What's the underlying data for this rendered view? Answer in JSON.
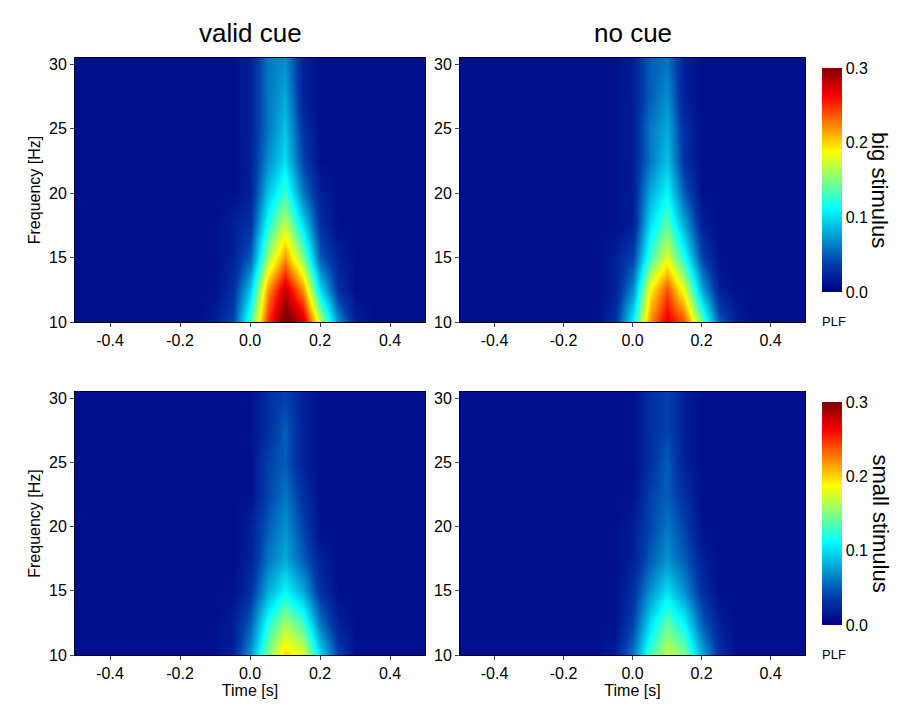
{
  "chart_data": [
    {
      "type": "heatmap",
      "column_title": "valid cue",
      "ylabel": "Frequency [Hz]",
      "x": [
        -0.5,
        -0.45,
        -0.4,
        -0.35,
        -0.3,
        -0.25,
        -0.2,
        -0.15,
        -0.1,
        -0.05,
        0,
        0.05,
        0.1,
        0.15,
        0.2,
        0.25,
        0.3,
        0.35,
        0.4,
        0.45,
        0.5
      ],
      "y": [
        10,
        12.5,
        15,
        17.5,
        20,
        22.5,
        25,
        27.5,
        30
      ],
      "xlim": [
        -0.5,
        0.5
      ],
      "ylim": [
        10,
        30.5
      ],
      "xticks": [
        -0.4,
        -0.2,
        {
          "value": 0,
          "label": "0.0"
        },
        0.2,
        0.4
      ],
      "yticks": [
        10,
        15,
        20,
        25,
        30
      ],
      "z": [
        [
          0.01,
          0.01,
          0.01,
          0.01,
          0.01,
          0.01,
          0.01,
          0.01,
          0.02,
          0.04,
          0.13,
          0.25,
          0.31,
          0.28,
          0.17,
          0.07,
          0.02,
          0.01,
          0.01,
          0.01,
          0.01
        ],
        [
          0.01,
          0.01,
          0.01,
          0.01,
          0.01,
          0.01,
          0.01,
          0.01,
          0.01,
          0.03,
          0.09,
          0.22,
          0.28,
          0.22,
          0.1,
          0.03,
          0.01,
          0.01,
          0.01,
          0.01,
          0.01
        ],
        [
          0.01,
          0.01,
          0.01,
          0.01,
          0.01,
          0.01,
          0.01,
          0.01,
          0.01,
          0.02,
          0.05,
          0.16,
          0.22,
          0.15,
          0.05,
          0.02,
          0.01,
          0.01,
          0.01,
          0.01,
          0.01
        ],
        [
          0.01,
          0.01,
          0.01,
          0.01,
          0.01,
          0.01,
          0.01,
          0.01,
          0.01,
          0.02,
          0.03,
          0.12,
          0.17,
          0.1,
          0.03,
          0.01,
          0.01,
          0.01,
          0.01,
          0.01,
          0.01
        ],
        [
          0.01,
          0.01,
          0.01,
          0.01,
          0.01,
          0.01,
          0.01,
          0.01,
          0.01,
          0.01,
          0.02,
          0.09,
          0.13,
          0.06,
          0.02,
          0.01,
          0.01,
          0.01,
          0.01,
          0.01,
          0.01
        ],
        [
          0.01,
          0.01,
          0.01,
          0.01,
          0.01,
          0.01,
          0.01,
          0.01,
          0.01,
          0.01,
          0.02,
          0.07,
          0.1,
          0.04,
          0.01,
          0.01,
          0.01,
          0.01,
          0.01,
          0.01,
          0.01
        ],
        [
          0.01,
          0.01,
          0.01,
          0.01,
          0.01,
          0.01,
          0.01,
          0.01,
          0.01,
          0.01,
          0.02,
          0.06,
          0.09,
          0.03,
          0.01,
          0.01,
          0.01,
          0.01,
          0.01,
          0.01,
          0.01
        ],
        [
          0.01,
          0.01,
          0.01,
          0.01,
          0.01,
          0.01,
          0.01,
          0.01,
          0.01,
          0.01,
          0.02,
          0.06,
          0.08,
          0.02,
          0.01,
          0.01,
          0.01,
          0.01,
          0.01,
          0.01,
          0.01
        ],
        [
          0.01,
          0.01,
          0.01,
          0.01,
          0.01,
          0.01,
          0.01,
          0.01,
          0.01,
          0.01,
          0.02,
          0.06,
          0.07,
          0.02,
          0.01,
          0.01,
          0.01,
          0.01,
          0.01,
          0.01,
          0.01
        ]
      ]
    },
    {
      "type": "heatmap",
      "column_title": "no cue",
      "row_label": "big stimulus",
      "x": [
        -0.5,
        -0.45,
        -0.4,
        -0.35,
        -0.3,
        -0.25,
        -0.2,
        -0.15,
        -0.1,
        -0.05,
        0,
        0.05,
        0.1,
        0.15,
        0.2,
        0.25,
        0.3,
        0.35,
        0.4,
        0.45,
        0.5
      ],
      "y": [
        10,
        12.5,
        15,
        17.5,
        20,
        22.5,
        25,
        27.5,
        30
      ],
      "xlim": [
        -0.5,
        0.5
      ],
      "ylim": [
        10,
        30.5
      ],
      "xticks": [
        -0.4,
        -0.2,
        {
          "value": 0,
          "label": "0.0"
        },
        0.2,
        0.4
      ],
      "yticks": [
        10,
        15,
        20,
        25,
        30
      ],
      "colorbar": {
        "range": [
          0,
          0.3
        ],
        "ticks": [
          {
            "value": 0,
            "label": "0.0"
          },
          0.1,
          0.2,
          0.3
        ],
        "title": "PLF"
      },
      "z": [
        [
          0.01,
          0.01,
          0.01,
          0.01,
          0.01,
          0.01,
          0.01,
          0.01,
          0.01,
          0.03,
          0.11,
          0.22,
          0.27,
          0.24,
          0.14,
          0.05,
          0.02,
          0.01,
          0.01,
          0.01,
          0.01
        ],
        [
          0.01,
          0.01,
          0.01,
          0.01,
          0.01,
          0.01,
          0.01,
          0.01,
          0.01,
          0.02,
          0.07,
          0.19,
          0.24,
          0.18,
          0.08,
          0.02,
          0.01,
          0.01,
          0.01,
          0.01,
          0.01
        ],
        [
          0.01,
          0.01,
          0.01,
          0.01,
          0.01,
          0.01,
          0.01,
          0.01,
          0.01,
          0.02,
          0.04,
          0.13,
          0.18,
          0.12,
          0.04,
          0.01,
          0.01,
          0.01,
          0.01,
          0.01,
          0.01
        ],
        [
          0.01,
          0.01,
          0.01,
          0.01,
          0.01,
          0.01,
          0.01,
          0.01,
          0.01,
          0.01,
          0.02,
          0.1,
          0.14,
          0.08,
          0.02,
          0.01,
          0.01,
          0.01,
          0.01,
          0.01,
          0.01
        ],
        [
          0.01,
          0.01,
          0.01,
          0.01,
          0.01,
          0.01,
          0.01,
          0.01,
          0.01,
          0.01,
          0.02,
          0.08,
          0.11,
          0.05,
          0.01,
          0.01,
          0.01,
          0.01,
          0.01,
          0.01,
          0.01
        ],
        [
          0.01,
          0.01,
          0.01,
          0.01,
          0.01,
          0.01,
          0.01,
          0.01,
          0.01,
          0.01,
          0.02,
          0.06,
          0.09,
          0.03,
          0.01,
          0.01,
          0.01,
          0.01,
          0.01,
          0.01,
          0.01
        ],
        [
          0.01,
          0.01,
          0.01,
          0.01,
          0.01,
          0.01,
          0.01,
          0.01,
          0.01,
          0.01,
          0.02,
          0.06,
          0.08,
          0.03,
          0.01,
          0.01,
          0.01,
          0.01,
          0.01,
          0.01,
          0.01
        ],
        [
          0.01,
          0.01,
          0.01,
          0.01,
          0.01,
          0.01,
          0.01,
          0.01,
          0.01,
          0.01,
          0.02,
          0.05,
          0.07,
          0.02,
          0.01,
          0.01,
          0.01,
          0.01,
          0.01,
          0.01,
          0.01
        ],
        [
          0.01,
          0.01,
          0.01,
          0.01,
          0.01,
          0.01,
          0.01,
          0.01,
          0.01,
          0.01,
          0.02,
          0.05,
          0.06,
          0.02,
          0.01,
          0.01,
          0.01,
          0.01,
          0.01,
          0.01,
          0.01
        ]
      ]
    },
    {
      "type": "heatmap",
      "ylabel": "Frequency [Hz]",
      "xlabel": "Time [s]",
      "x": [
        -0.5,
        -0.45,
        -0.4,
        -0.35,
        -0.3,
        -0.25,
        -0.2,
        -0.15,
        -0.1,
        -0.05,
        0,
        0.05,
        0.1,
        0.15,
        0.2,
        0.25,
        0.3,
        0.35,
        0.4,
        0.45,
        0.5
      ],
      "y": [
        10,
        12.5,
        15,
        17.5,
        20,
        22.5,
        25,
        27.5,
        30
      ],
      "xlim": [
        -0.5,
        0.5
      ],
      "ylim": [
        10,
        30.5
      ],
      "xticks": [
        -0.4,
        -0.2,
        {
          "value": 0,
          "label": "0.0"
        },
        0.2,
        0.4
      ],
      "yticks": [
        10,
        15,
        20,
        25,
        30
      ],
      "z": [
        [
          0.01,
          0.01,
          0.01,
          0.01,
          0.01,
          0.01,
          0.01,
          0.01,
          0.01,
          0.02,
          0.07,
          0.15,
          0.2,
          0.18,
          0.1,
          0.04,
          0.01,
          0.01,
          0.01,
          0.01,
          0.01
        ],
        [
          0.01,
          0.01,
          0.01,
          0.01,
          0.01,
          0.01,
          0.01,
          0.01,
          0.01,
          0.02,
          0.05,
          0.12,
          0.16,
          0.13,
          0.06,
          0.02,
          0.01,
          0.01,
          0.01,
          0.01,
          0.01
        ],
        [
          0.01,
          0.01,
          0.01,
          0.01,
          0.01,
          0.01,
          0.01,
          0.01,
          0.01,
          0.01,
          0.03,
          0.08,
          0.11,
          0.08,
          0.03,
          0.01,
          0.01,
          0.01,
          0.01,
          0.01,
          0.01
        ],
        [
          0.01,
          0.01,
          0.01,
          0.01,
          0.01,
          0.01,
          0.01,
          0.01,
          0.01,
          0.01,
          0.02,
          0.06,
          0.08,
          0.05,
          0.02,
          0.01,
          0.01,
          0.01,
          0.01,
          0.01,
          0.01
        ],
        [
          0.01,
          0.01,
          0.01,
          0.01,
          0.01,
          0.01,
          0.01,
          0.01,
          0.01,
          0.01,
          0.02,
          0.05,
          0.07,
          0.04,
          0.01,
          0.01,
          0.01,
          0.01,
          0.01,
          0.01,
          0.01
        ],
        [
          0.01,
          0.01,
          0.01,
          0.01,
          0.01,
          0.01,
          0.01,
          0.01,
          0.01,
          0.01,
          0.01,
          0.04,
          0.06,
          0.03,
          0.01,
          0.01,
          0.01,
          0.01,
          0.01,
          0.01,
          0.01
        ],
        [
          0.01,
          0.01,
          0.01,
          0.01,
          0.01,
          0.01,
          0.01,
          0.01,
          0.01,
          0.01,
          0.01,
          0.04,
          0.05,
          0.02,
          0.01,
          0.01,
          0.01,
          0.01,
          0.01,
          0.01,
          0.01
        ],
        [
          0.01,
          0.01,
          0.01,
          0.01,
          0.01,
          0.01,
          0.01,
          0.01,
          0.01,
          0.01,
          0.01,
          0.03,
          0.05,
          0.02,
          0.01,
          0.01,
          0.01,
          0.01,
          0.01,
          0.01,
          0.01
        ],
        [
          0.01,
          0.01,
          0.01,
          0.01,
          0.01,
          0.01,
          0.01,
          0.01,
          0.01,
          0.01,
          0.01,
          0.03,
          0.04,
          0.02,
          0.01,
          0.01,
          0.01,
          0.01,
          0.01,
          0.01,
          0.01
        ]
      ]
    },
    {
      "type": "heatmap",
      "row_label": "small stimulus",
      "xlabel": "Time [s]",
      "x": [
        -0.5,
        -0.45,
        -0.4,
        -0.35,
        -0.3,
        -0.25,
        -0.2,
        -0.15,
        -0.1,
        -0.05,
        0,
        0.05,
        0.1,
        0.15,
        0.2,
        0.25,
        0.3,
        0.35,
        0.4,
        0.45,
        0.5
      ],
      "y": [
        10,
        12.5,
        15,
        17.5,
        20,
        22.5,
        25,
        27.5,
        30
      ],
      "xlim": [
        -0.5,
        0.5
      ],
      "ylim": [
        10,
        30.5
      ],
      "xticks": [
        -0.4,
        -0.2,
        {
          "value": 0,
          "label": "0.0"
        },
        0.2,
        0.4
      ],
      "yticks": [
        10,
        15,
        20,
        25,
        30
      ],
      "colorbar": {
        "range": [
          0,
          0.3
        ],
        "ticks": [
          {
            "value": 0,
            "label": "0.0"
          },
          0.1,
          0.2,
          0.3
        ],
        "title": "PLF"
      },
      "z": [
        [
          0.01,
          0.01,
          0.01,
          0.01,
          0.01,
          0.01,
          0.01,
          0.01,
          0.01,
          0.02,
          0.06,
          0.13,
          0.17,
          0.15,
          0.08,
          0.03,
          0.01,
          0.01,
          0.01,
          0.01,
          0.01
        ],
        [
          0.01,
          0.01,
          0.01,
          0.01,
          0.01,
          0.01,
          0.01,
          0.01,
          0.01,
          0.01,
          0.04,
          0.1,
          0.14,
          0.11,
          0.05,
          0.02,
          0.01,
          0.01,
          0.01,
          0.01,
          0.01
        ],
        [
          0.01,
          0.01,
          0.01,
          0.01,
          0.01,
          0.01,
          0.01,
          0.01,
          0.01,
          0.01,
          0.03,
          0.07,
          0.1,
          0.07,
          0.03,
          0.01,
          0.01,
          0.01,
          0.01,
          0.01,
          0.01
        ],
        [
          0.01,
          0.01,
          0.01,
          0.01,
          0.01,
          0.01,
          0.01,
          0.01,
          0.01,
          0.01,
          0.02,
          0.05,
          0.07,
          0.05,
          0.02,
          0.01,
          0.01,
          0.01,
          0.01,
          0.01,
          0.01
        ],
        [
          0.01,
          0.01,
          0.01,
          0.01,
          0.01,
          0.01,
          0.01,
          0.01,
          0.01,
          0.01,
          0.02,
          0.04,
          0.06,
          0.04,
          0.01,
          0.01,
          0.01,
          0.01,
          0.01,
          0.01,
          0.01
        ],
        [
          0.01,
          0.01,
          0.01,
          0.01,
          0.01,
          0.01,
          0.01,
          0.01,
          0.01,
          0.01,
          0.01,
          0.04,
          0.05,
          0.03,
          0.01,
          0.01,
          0.01,
          0.01,
          0.01,
          0.01,
          0.01
        ],
        [
          0.01,
          0.01,
          0.01,
          0.01,
          0.01,
          0.01,
          0.01,
          0.01,
          0.01,
          0.01,
          0.01,
          0.03,
          0.05,
          0.02,
          0.01,
          0.01,
          0.01,
          0.01,
          0.01,
          0.01,
          0.01
        ],
        [
          0.01,
          0.01,
          0.01,
          0.01,
          0.01,
          0.01,
          0.01,
          0.01,
          0.01,
          0.01,
          0.01,
          0.03,
          0.04,
          0.02,
          0.01,
          0.01,
          0.01,
          0.01,
          0.01,
          0.01,
          0.01
        ],
        [
          0.01,
          0.01,
          0.01,
          0.01,
          0.01,
          0.01,
          0.01,
          0.01,
          0.01,
          0.01,
          0.01,
          0.03,
          0.04,
          0.02,
          0.01,
          0.01,
          0.01,
          0.01,
          0.01,
          0.01,
          0.01
        ]
      ]
    }
  ]
}
